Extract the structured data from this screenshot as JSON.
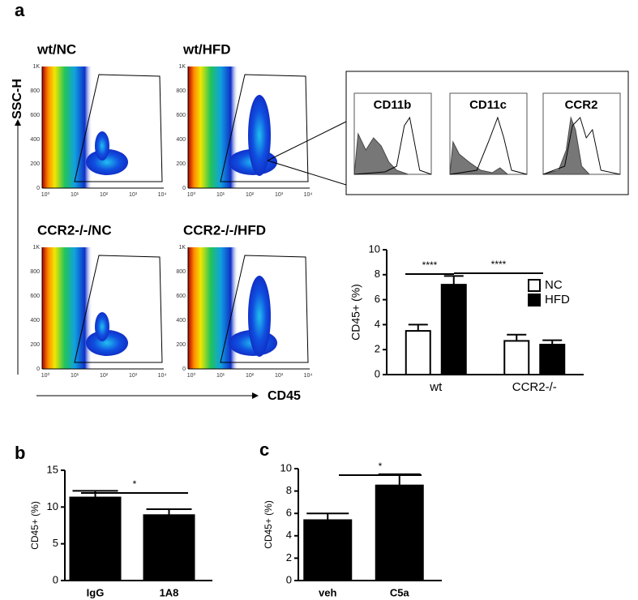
{
  "panel_labels": [
    "a",
    "b",
    "c"
  ],
  "flow": {
    "y_axis_label": "SSC-H",
    "x_axis_label": "CD45",
    "panels": [
      "wt/NC",
      "wt/HFD",
      "CCR2-/-/NC",
      "CCR2-/-/HFD"
    ],
    "yticks": [
      "0",
      "200",
      "400",
      "600",
      "800",
      "1K"
    ],
    "xticks": [
      "10⁰",
      "10¹",
      "10²",
      "10³",
      "10⁴"
    ]
  },
  "histograms": {
    "titles": [
      "CD11b",
      "CD11c",
      "CCR2"
    ]
  },
  "chart_data": [
    {
      "type": "bar",
      "ylabel": "CD45+ (%)",
      "categories": [
        "wt",
        "CCR2-/-"
      ],
      "series": [
        {
          "name": "NC",
          "color": "#ffffff",
          "values": [
            3.5,
            2.7
          ],
          "errors": [
            0.5,
            0.5
          ]
        },
        {
          "name": "HFD",
          "color": "#000000",
          "values": [
            7.2,
            2.4
          ],
          "errors": [
            0.7,
            0.35
          ]
        }
      ],
      "ylim": [
        0,
        10
      ],
      "yticks": [
        0,
        2,
        4,
        6,
        8,
        10
      ],
      "annotations": [
        "****",
        "****"
      ]
    },
    {
      "type": "bar",
      "ylabel": "CD45+ (%)",
      "categories": [
        "IgG",
        "1A8"
      ],
      "color": "#000000",
      "values": [
        11.3,
        8.9
      ],
      "errors": [
        0.9,
        0.8
      ],
      "ylim": [
        0,
        15
      ],
      "yticks": [
        0,
        5,
        10,
        15
      ],
      "annotations": [
        "*"
      ]
    },
    {
      "type": "bar",
      "ylabel": "CD45+ (%)",
      "categories": [
        "veh",
        "C5a"
      ],
      "color": "#000000",
      "values": [
        5.4,
        8.5
      ],
      "errors": [
        0.6,
        1.0
      ],
      "ylim": [
        0,
        10
      ],
      "yticks": [
        0,
        2,
        4,
        6,
        8,
        10
      ],
      "annotations": [
        "*"
      ]
    }
  ]
}
